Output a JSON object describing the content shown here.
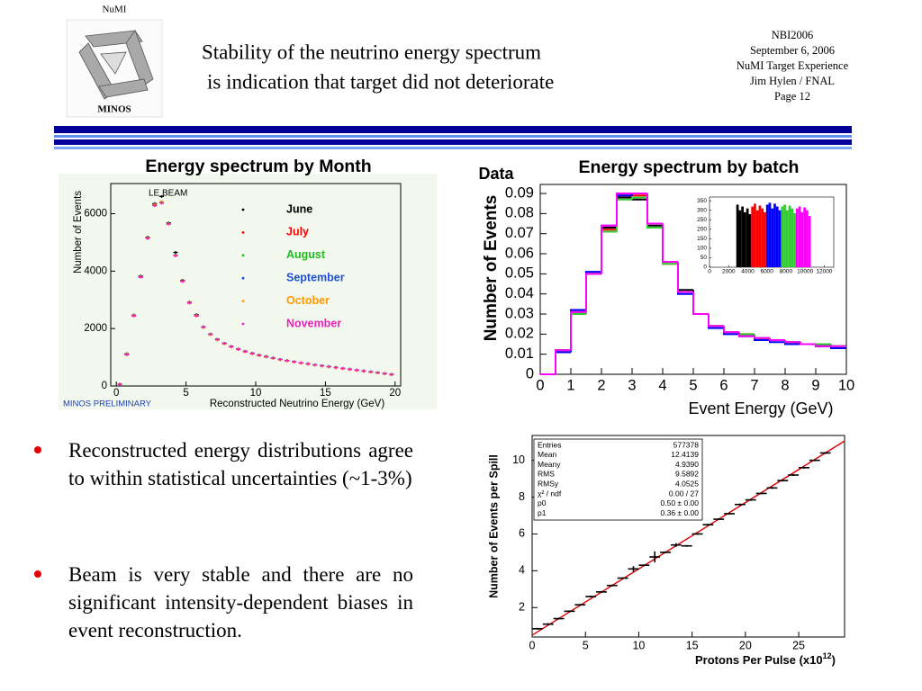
{
  "header": {
    "logo_top": "NuMI",
    "logo_bottom": "MINOS",
    "title_lines": [
      "Stability of the neutrino energy spectrum",
      "is indication that target did not deteriorate"
    ],
    "info": [
      "NBI2006",
      "September 6, 2006",
      "NuMI Target Experience",
      "Jim Hylen / FNAL",
      "Page 12"
    ]
  },
  "bullets": [
    "Reconstructed energy distributions agree to within statistical uncertainties (~1-3%)",
    "Beam is very stable and there are no significant intensity-dependent biases in event reconstruction."
  ],
  "chart_data": [
    {
      "type": "scatter",
      "title": "Energy spectrum by Month",
      "annotations": [
        "LE BEAM",
        "MINOS PRELIMINARY"
      ],
      "x_label": "Reconstructed Neutrino Energy (GeV)",
      "y_label": "Number of Events",
      "legend": "upper right",
      "xlim": [
        -0.4,
        20.4
      ],
      "xticks": [
        0,
        5,
        10,
        15,
        20
      ],
      "ylim": [
        0,
        7050
      ],
      "yticks": [
        0,
        2000,
        4000,
        6000
      ],
      "x": [
        0.25,
        0.75,
        1.25,
        1.75,
        2.25,
        2.75,
        3.25,
        3.75,
        4.25,
        4.75,
        5.25,
        5.75,
        6.25,
        6.75,
        7.25,
        7.75,
        8.25,
        8.75,
        9.25,
        9.75,
        10.25,
        10.75,
        11.25,
        11.75,
        12.25,
        12.75,
        13.25,
        13.75,
        14.25,
        14.75,
        15.25,
        15.75,
        16.25,
        16.75,
        17.25,
        17.75,
        18.25,
        18.75,
        19.25,
        19.75
      ],
      "series": [
        {
          "name": "June",
          "color": "#000000",
          "values": [
            60,
            1120,
            2470,
            3830,
            5180,
            6350,
            6600,
            5680,
            4650,
            3680,
            2920,
            2480,
            2060,
            1810,
            1630,
            1490,
            1380,
            1290,
            1210,
            1140,
            1080,
            1030,
            975,
            925,
            885,
            845,
            805,
            770,
            735,
            705,
            670,
            645,
            610,
            585,
            550,
            525,
            490,
            465,
            430,
            405
          ]
        },
        {
          "name": "July",
          "color": "#ff0000",
          "values": [
            55,
            1090,
            2440,
            3790,
            5140,
            6280,
            6380,
            5640,
            4540,
            3640,
            2890,
            2440,
            2040,
            1790,
            1610,
            1470,
            1360,
            1270,
            1190,
            1120,
            1060,
            1010,
            965,
            915,
            875,
            835,
            795,
            765,
            725,
            695,
            665,
            635,
            605,
            575,
            545,
            515,
            485,
            455,
            425,
            395
          ]
        },
        {
          "name": "August",
          "color": "#22bb22",
          "values": [
            65,
            1110,
            2460,
            3810,
            5160,
            6310,
            6410,
            5660,
            4560,
            3660,
            2910,
            2460,
            2060,
            1810,
            1630,
            1490,
            1380,
            1290,
            1210,
            1140,
            1080,
            1030,
            980,
            930,
            890,
            850,
            810,
            780,
            740,
            710,
            680,
            650,
            620,
            590,
            560,
            530,
            500,
            470,
            440,
            410
          ]
        },
        {
          "name": "September",
          "color": "#1f4fd6",
          "values": [
            58,
            1100,
            2450,
            3790,
            5150,
            6300,
            6390,
            5650,
            4550,
            3650,
            2900,
            2450,
            2050,
            1800,
            1620,
            1480,
            1370,
            1280,
            1200,
            1130,
            1070,
            1020,
            970,
            920,
            880,
            840,
            800,
            770,
            730,
            700,
            670,
            640,
            610,
            580,
            550,
            520,
            490,
            460,
            430,
            400
          ]
        },
        {
          "name": "October",
          "color": "#ff9900",
          "values": [
            62,
            1105,
            2455,
            3805,
            5155,
            6320,
            6420,
            5655,
            4545,
            3655,
            2905,
            2455,
            2045,
            1795,
            1615,
            1475,
            1365,
            1275,
            1195,
            1125,
            1065,
            1015,
            965,
            915,
            875,
            835,
            795,
            765,
            725,
            695,
            665,
            635,
            605,
            575,
            545,
            515,
            485,
            455,
            425,
            395
          ]
        },
        {
          "name": "November",
          "color": "#ee22bb",
          "values": [
            60,
            1095,
            2445,
            3795,
            5145,
            6290,
            6370,
            5645,
            4535,
            3645,
            2895,
            2445,
            2055,
            1805,
            1625,
            1485,
            1375,
            1285,
            1205,
            1135,
            1075,
            1025,
            975,
            925,
            885,
            845,
            805,
            775,
            735,
            705,
            675,
            645,
            615,
            585,
            555,
            525,
            495,
            465,
            435,
            405
          ]
        }
      ]
    },
    {
      "type": "histogram",
      "title": "Energy spectrum by batch",
      "annotation": "Data",
      "x_label": "Event Energy (GeV)",
      "y_label": "Number of Events",
      "xlim": [
        0,
        10
      ],
      "xticks": [
        0,
        1,
        2,
        3,
        4,
        5,
        6,
        7,
        8,
        9,
        10
      ],
      "ylim": [
        0,
        0.0945
      ],
      "yticks": [
        0,
        0.01,
        0.02,
        0.03,
        0.04,
        0.05,
        0.06,
        0.07,
        0.08,
        0.09
      ],
      "bins": [
        0,
        0.5,
        1,
        1.5,
        2,
        2.5,
        3,
        3.5,
        4,
        4.5,
        5,
        5.5,
        6,
        6.5,
        7,
        7.5,
        8,
        8.5,
        9,
        9.5,
        10
      ],
      "series": [
        {
          "color": "#000000",
          "values": [
            0,
            0.012,
            0.031,
            0.05,
            0.073,
            0.088,
            0.087,
            0.074,
            0.056,
            0.042,
            0.03,
            0.024,
            0.021,
            0.019,
            0.018,
            0.017,
            0.016,
            0.015,
            0.014,
            0.014
          ]
        },
        {
          "color": "#ff0000",
          "values": [
            0,
            0.012,
            0.03,
            0.05,
            0.072,
            0.089,
            0.089,
            0.075,
            0.055,
            0.041,
            0.03,
            0.024,
            0.021,
            0.02,
            0.018,
            0.017,
            0.016,
            0.015,
            0.014,
            0.013
          ]
        },
        {
          "color": "#33cc33",
          "values": [
            0,
            0.012,
            0.03,
            0.05,
            0.071,
            0.087,
            0.088,
            0.073,
            0.055,
            0.041,
            0.03,
            0.024,
            0.021,
            0.02,
            0.018,
            0.017,
            0.016,
            0.015,
            0.015,
            0.014
          ]
        },
        {
          "color": "#0000ff",
          "values": [
            0,
            0.011,
            0.032,
            0.051,
            0.074,
            0.089,
            0.09,
            0.075,
            0.056,
            0.04,
            0.03,
            0.023,
            0.02,
            0.019,
            0.017,
            0.016,
            0.015,
            0.015,
            0.014,
            0.013
          ]
        },
        {
          "color": "#ff00ff",
          "values": [
            0,
            0.012,
            0.031,
            0.05,
            0.074,
            0.09,
            0.09,
            0.075,
            0.056,
            0.041,
            0.03,
            0.024,
            0.021,
            0.019,
            0.018,
            0.017,
            0.016,
            0.015,
            0.014,
            0.014
          ]
        }
      ],
      "inset": {
        "type": "histogram",
        "xlim": [
          0,
          13000
        ],
        "xticks": [
          0,
          2000,
          4000,
          6000,
          8000,
          10000,
          12000
        ],
        "ylim": [
          0,
          370
        ],
        "yticks": [
          0,
          50,
          100,
          150,
          200,
          250,
          300,
          350
        ],
        "series": [
          {
            "color": "#000000",
            "bins": [
              2800,
              3060,
              3320,
              3580,
              3840,
              4100,
              4360
            ],
            "values": [
              330,
              300,
              320,
              290,
              310,
              280
            ]
          },
          {
            "color": "#ff0000",
            "bins": [
              4360,
              4620,
              4880,
              5140,
              5400,
              5660,
              5920
            ],
            "values": [
              320,
              335,
              300,
              325,
              310,
              290
            ]
          },
          {
            "color": "#0000ff",
            "bins": [
              5920,
              6180,
              6440,
              6700,
              6960,
              7220,
              7480
            ],
            "values": [
              330,
              340,
              310,
              335,
              320,
              300
            ]
          },
          {
            "color": "#33cc33",
            "bins": [
              7480,
              7740,
              8000,
              8260,
              8520,
              8780,
              9040
            ],
            "values": [
              320,
              330,
              300,
              325,
              310,
              285
            ]
          },
          {
            "color": "#ff00ff",
            "bins": [
              9040,
              9300,
              9560,
              9820,
              10080,
              10340,
              10600
            ],
            "values": [
              310,
              320,
              290,
              315,
              300,
              270
            ]
          }
        ]
      }
    },
    {
      "type": "scatter",
      "x_label": "Protons Per Pulse (x10",
      "x_label_sup": "12",
      "x_label_end": ")",
      "y_label": "Number of Events per Spill",
      "xlim": [
        0,
        29.3
      ],
      "xticks": [
        0,
        5,
        10,
        15,
        20,
        25
      ],
      "ylim": [
        0.4,
        11.35
      ],
      "yticks": [
        2,
        4,
        6,
        8,
        10
      ],
      "color": "#000000",
      "x": [
        0.5,
        1.5,
        2.5,
        3.5,
        4.5,
        5.5,
        6.5,
        7.5,
        8.5,
        9.5,
        10.5,
        11.5,
        12.5,
        13.5,
        14.5,
        15.5,
        16.5,
        17.5,
        18.5,
        19.5,
        20.5,
        21.5,
        22.5,
        23.5,
        24.5,
        25.5,
        26.5,
        27.5
      ],
      "values": [
        0.85,
        1.1,
        1.4,
        1.8,
        2.15,
        2.6,
        2.85,
        3.2,
        3.6,
        4.1,
        4.3,
        4.75,
        5.0,
        5.4,
        5.35,
        6.0,
        6.5,
        6.8,
        7.1,
        7.6,
        7.85,
        8.2,
        8.5,
        8.9,
        9.2,
        9.6,
        10.0,
        10.4
      ],
      "xerr": 0.5,
      "yerr": [
        0.05,
        0.05,
        0.05,
        0.05,
        0.05,
        0.05,
        0.05,
        0.05,
        0.05,
        0.15,
        0.05,
        0.3,
        0.05,
        0.1,
        0.05,
        0.05,
        0.05,
        0.05,
        0.05,
        0.05,
        0.05,
        0.05,
        0.05,
        0.05,
        0.05,
        0.05,
        0.05,
        0.05
      ],
      "fit": {
        "color": "#dd0000",
        "x": [
          0,
          29.3
        ],
        "y": [
          0.5,
          11.05
        ]
      },
      "stats": [
        [
          "Entries",
          "577378"
        ],
        [
          "Mean",
          "12.4139"
        ],
        [
          "Meany",
          "4.9390"
        ],
        [
          "RMS",
          "9.5892"
        ],
        [
          "RMSy",
          "4.0525"
        ],
        [
          "χ² / ndf",
          "0.00 / 27"
        ],
        [
          "p0",
          "0.50 ± 0.00"
        ],
        [
          "p1",
          "0.36 ± 0.00"
        ]
      ]
    }
  ]
}
